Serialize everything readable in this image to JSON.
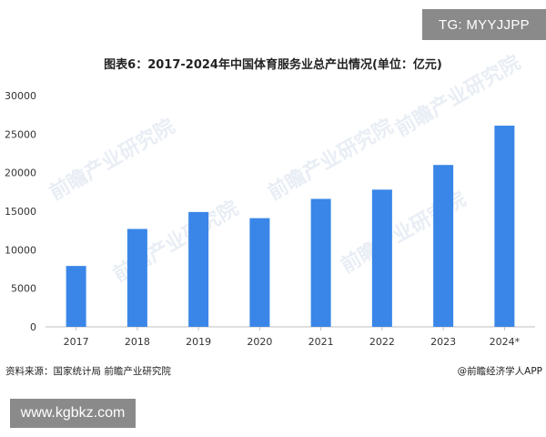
{
  "overlay": {
    "tg_badge": "TG: MYYJJPP",
    "site_badge": "www.kgbkz.com"
  },
  "footer": {
    "source": "资料来源：国家统计局 前瞻产业研究院",
    "credit": "@前瞻经济学人APP"
  },
  "watermark": {
    "text": "前瞻产业研究院"
  },
  "chart_data": {
    "type": "bar",
    "title": "图表6：2017-2024年中国体育服务业总产出情况(单位：亿元)",
    "categories": [
      "2017",
      "2018",
      "2019",
      "2020",
      "2021",
      "2022",
      "2023",
      "2024*"
    ],
    "values": [
      7900,
      12700,
      14900,
      14100,
      16600,
      17800,
      21000,
      26100
    ],
    "ylim": [
      0,
      30000
    ],
    "yticks": [
      0,
      5000,
      10000,
      15000,
      20000,
      25000,
      30000
    ],
    "grid": false,
    "bar_color": "#3a86e8",
    "axis_color": "#bfbfbf",
    "xlabel": "",
    "ylabel": ""
  }
}
